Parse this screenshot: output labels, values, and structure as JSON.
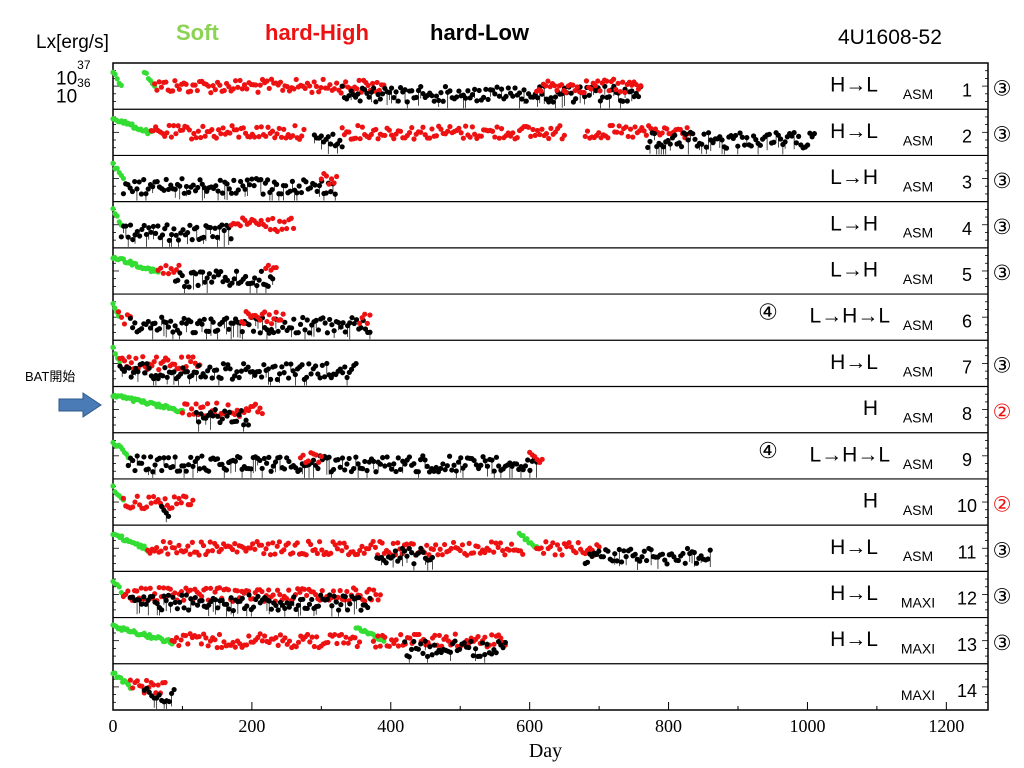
{
  "header": {
    "ylabel": "Lx[erg/s]",
    "soft_label": "Soft",
    "high_label": "hard-High",
    "low_label": "hard-Low",
    "source": "4U1608-52"
  },
  "colors": {
    "soft": "#33dd33",
    "high": "#ee1111",
    "low": "#000000",
    "circle2": "#ee1111",
    "arrow": "#4a7bb7"
  },
  "annotation": {
    "bat": "BAT開始",
    "bat_icon": "right-arrow-icon"
  },
  "chart_data": {
    "type": "scatter",
    "xlabel": "Day",
    "ylabel": "Lx[erg/s]",
    "xlim": [
      0,
      1260
    ],
    "x_ticks": [
      0,
      200,
      400,
      600,
      800,
      1000,
      1200
    ],
    "y_tick_labels": [
      "10^37",
      "10^36"
    ],
    "categories": [
      "Soft",
      "hard-High",
      "hard-Low"
    ],
    "panels": [
      {
        "id": 1,
        "transition": "H→L",
        "instrument": "ASM",
        "number": "1",
        "type_mark": "③",
        "mark_color": "black",
        "segments": [
          {
            "state": "soft",
            "start": 0,
            "end": 12
          },
          {
            "state": "soft",
            "start": 45,
            "end": 60
          },
          {
            "state": "high",
            "start": 60,
            "end": 390
          },
          {
            "state": "low",
            "start": 330,
            "end": 760
          },
          {
            "state": "high",
            "start": 610,
            "end": 760
          }
        ]
      },
      {
        "id": 2,
        "transition": "H→L",
        "instrument": "ASM",
        "number": "2",
        "type_mark": "③",
        "mark_color": "black",
        "segments": [
          {
            "state": "soft",
            "start": 0,
            "end": 55
          },
          {
            "state": "high",
            "start": 55,
            "end": 275
          },
          {
            "state": "low",
            "start": 290,
            "end": 330
          },
          {
            "state": "high",
            "start": 330,
            "end": 650
          },
          {
            "state": "high",
            "start": 680,
            "end": 830
          },
          {
            "state": "low",
            "start": 770,
            "end": 1010
          }
        ]
      },
      {
        "id": 3,
        "transition": "L→H",
        "instrument": "ASM",
        "number": "3",
        "type_mark": "③",
        "mark_color": "black",
        "segments": [
          {
            "state": "soft",
            "start": 0,
            "end": 15
          },
          {
            "state": "low",
            "start": 15,
            "end": 320
          },
          {
            "state": "high",
            "start": 300,
            "end": 322
          }
        ]
      },
      {
        "id": 4,
        "transition": "L→H",
        "instrument": "ASM",
        "number": "4",
        "type_mark": "③",
        "mark_color": "black",
        "segments": [
          {
            "state": "soft",
            "start": 0,
            "end": 12
          },
          {
            "state": "low",
            "start": 12,
            "end": 170
          },
          {
            "state": "high",
            "start": 170,
            "end": 260
          }
        ]
      },
      {
        "id": 5,
        "transition": "L→H",
        "instrument": "ASM",
        "number": "5",
        "type_mark": "③",
        "mark_color": "black",
        "segments": [
          {
            "state": "soft",
            "start": 0,
            "end": 65
          },
          {
            "state": "high",
            "start": 65,
            "end": 95
          },
          {
            "state": "low",
            "start": 90,
            "end": 230
          },
          {
            "state": "high",
            "start": 220,
            "end": 235
          }
        ]
      },
      {
        "id": 6,
        "transition": "L→H→L",
        "instrument": "ASM",
        "number": "6",
        "type_mark": "④",
        "mark_color": "black",
        "segments": [
          {
            "state": "soft",
            "start": 0,
            "end": 8
          },
          {
            "state": "high",
            "start": 8,
            "end": 25
          },
          {
            "state": "low",
            "start": 25,
            "end": 370
          },
          {
            "state": "high",
            "start": 185,
            "end": 245
          },
          {
            "state": "high",
            "start": 355,
            "end": 370
          }
        ]
      },
      {
        "id": 7,
        "transition": "H→L",
        "instrument": "ASM",
        "number": "7",
        "type_mark": "③",
        "mark_color": "black",
        "segments": [
          {
            "state": "soft",
            "start": 0,
            "end": 10
          },
          {
            "state": "high",
            "start": 10,
            "end": 125
          },
          {
            "state": "low",
            "start": 10,
            "end": 350
          }
        ]
      },
      {
        "id": 8,
        "transition": "H",
        "instrument": "ASM",
        "number": "8",
        "type_mark": "②",
        "mark_color": "red",
        "segments": [
          {
            "state": "soft",
            "start": 0,
            "end": 100
          },
          {
            "state": "high",
            "start": 100,
            "end": 215
          },
          {
            "state": "low",
            "start": 120,
            "end": 195
          }
        ]
      },
      {
        "id": 9,
        "transition": "L→H→L",
        "instrument": "ASM",
        "number": "9",
        "type_mark": "④",
        "mark_color": "black",
        "segments": [
          {
            "state": "soft",
            "start": 0,
            "end": 22
          },
          {
            "state": "low",
            "start": 22,
            "end": 610
          },
          {
            "state": "high",
            "start": 270,
            "end": 300
          },
          {
            "state": "high",
            "start": 600,
            "end": 618
          }
        ]
      },
      {
        "id": 10,
        "transition": "H",
        "instrument": "ASM",
        "number": "10",
        "type_mark": "②",
        "mark_color": "red",
        "segments": [
          {
            "state": "soft",
            "start": 0,
            "end": 15
          },
          {
            "state": "high",
            "start": 15,
            "end": 115
          },
          {
            "state": "low",
            "start": 70,
            "end": 80
          }
        ]
      },
      {
        "id": 11,
        "transition": "H→L",
        "instrument": "ASM",
        "number": "11",
        "type_mark": "③",
        "mark_color": "black",
        "segments": [
          {
            "state": "soft",
            "start": 0,
            "end": 50
          },
          {
            "state": "high",
            "start": 50,
            "end": 590
          },
          {
            "state": "low",
            "start": 380,
            "end": 460
          },
          {
            "state": "soft",
            "start": 585,
            "end": 610
          },
          {
            "state": "high",
            "start": 610,
            "end": 700
          },
          {
            "state": "low",
            "start": 680,
            "end": 860
          }
        ]
      },
      {
        "id": 12,
        "transition": "H→L",
        "instrument": "MAXI",
        "number": "12",
        "type_mark": "③",
        "mark_color": "black",
        "segments": [
          {
            "state": "soft",
            "start": 0,
            "end": 15
          },
          {
            "state": "high",
            "start": 15,
            "end": 385
          },
          {
            "state": "low",
            "start": 25,
            "end": 370
          }
        ]
      },
      {
        "id": 13,
        "transition": "H→L",
        "instrument": "MAXI",
        "number": "13",
        "type_mark": "③",
        "mark_color": "black",
        "segments": [
          {
            "state": "soft",
            "start": 0,
            "end": 85
          },
          {
            "state": "high",
            "start": 85,
            "end": 355
          },
          {
            "state": "soft",
            "start": 350,
            "end": 390
          },
          {
            "state": "high",
            "start": 375,
            "end": 565
          },
          {
            "state": "low",
            "start": 420,
            "end": 565
          }
        ]
      },
      {
        "id": 14,
        "transition": "",
        "instrument": "MAXI",
        "number": "14",
        "type_mark": "",
        "mark_color": "black",
        "segments": [
          {
            "state": "soft",
            "start": 0,
            "end": 25
          },
          {
            "state": "high",
            "start": 25,
            "end": 75
          },
          {
            "state": "low",
            "start": 45,
            "end": 88
          }
        ]
      }
    ]
  }
}
